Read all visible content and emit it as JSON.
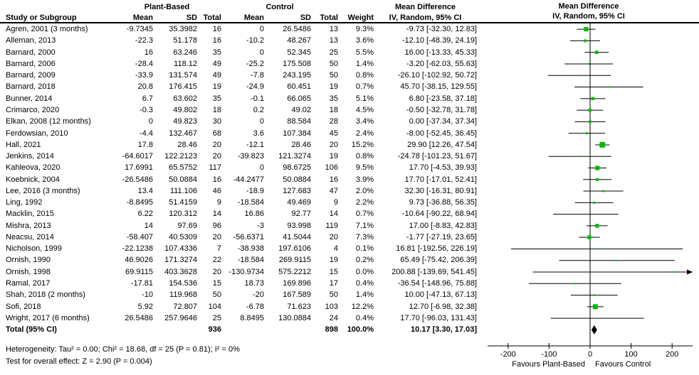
{
  "header": {
    "study_col": "Study or Subgroup",
    "group1": "Plant-Based",
    "group2": "Control",
    "mean": "Mean",
    "sd": "SD",
    "total": "Total",
    "weight": "Weight",
    "md_line1": "Mean Difference",
    "md_line2": "IV, Random, 95% CI"
  },
  "chart_data": {
    "type": "forest",
    "effect_label": "Mean Difference",
    "model_label": "IV, Random, 95% CI",
    "marker_color": "#00bb00",
    "axis": {
      "min": -250,
      "max": 250,
      "ticks": [
        -200,
        -100,
        0,
        100,
        200
      ],
      "favours_left": "Favours Plant-Based",
      "favours_right": "Favours Control"
    },
    "studies": [
      {
        "name": "Agren, 2001 (3 months)",
        "m1": "-9.7345",
        "sd1": "35.3982",
        "n1": "16",
        "m2": "0",
        "sd2": "26.5486",
        "n2": "13",
        "w": "9.3%",
        "ci": "-9.73 [-32.30, 12.83]",
        "md": -9.73,
        "lo": -32.3,
        "hi": 12.83,
        "wv": 9.3
      },
      {
        "name": "Alleman, 2013",
        "m1": "-22.3",
        "sd1": "51.178",
        "n1": "16",
        "m2": "-10.2",
        "sd2": "48.267",
        "n2": "13",
        "w": "3.6%",
        "ci": "-12.10 [-48.39, 24.19]",
        "md": -12.1,
        "lo": -48.39,
        "hi": 24.19,
        "wv": 3.6
      },
      {
        "name": "Barnard, 2000",
        "m1": "16",
        "sd1": "63.246",
        "n1": "35",
        "m2": "0",
        "sd2": "52.345",
        "n2": "25",
        "w": "5.5%",
        "ci": "16.00 [-13.33, 45.33]",
        "md": 16.0,
        "lo": -13.33,
        "hi": 45.33,
        "wv": 5.5
      },
      {
        "name": "Barnard, 2006",
        "m1": "-28.4",
        "sd1": "118.12",
        "n1": "49",
        "m2": "-25.2",
        "sd2": "175.508",
        "n2": "50",
        "w": "1.4%",
        "ci": "-3.20 [-62.03, 55.63]",
        "md": -3.2,
        "lo": -62.03,
        "hi": 55.63,
        "wv": 1.4
      },
      {
        "name": "Barnard, 2009",
        "m1": "-33.9",
        "sd1": "131.574",
        "n1": "49",
        "m2": "-7.8",
        "sd2": "243.195",
        "n2": "50",
        "w": "0.8%",
        "ci": "-26.10 [-102.92, 50.72]",
        "md": -26.1,
        "lo": -102.92,
        "hi": 50.72,
        "wv": 0.8
      },
      {
        "name": "Barnard, 2018",
        "m1": "20.8",
        "sd1": "176.415",
        "n1": "19",
        "m2": "-24.9",
        "sd2": "60.451",
        "n2": "19",
        "w": "0.7%",
        "ci": "45.70 [-38.15, 129.55]",
        "md": 45.7,
        "lo": -38.15,
        "hi": 129.55,
        "wv": 0.7
      },
      {
        "name": "Bunner, 2014",
        "m1": "6.7",
        "sd1": "63.602",
        "n1": "35",
        "m2": "-0.1",
        "sd2": "66.065",
        "n2": "35",
        "w": "5.1%",
        "ci": "6.80 [-23.58, 37.18]",
        "md": 6.8,
        "lo": -23.58,
        "hi": 37.18,
        "wv": 5.1
      },
      {
        "name": "Crimarco, 2020",
        "m1": "-0.3",
        "sd1": "49.802",
        "n1": "18",
        "m2": "0.2",
        "sd2": "49.02",
        "n2": "18",
        "w": "4.5%",
        "ci": "-0.50 [-32.78, 31.78]",
        "md": -0.5,
        "lo": -32.78,
        "hi": 31.78,
        "wv": 4.5
      },
      {
        "name": "Elkan, 2008 (12 months)",
        "m1": "0",
        "sd1": "49.823",
        "n1": "30",
        "m2": "0",
        "sd2": "88.584",
        "n2": "28",
        "w": "3.4%",
        "ci": "0.00 [-37.34, 37.34]",
        "md": 0.0,
        "lo": -37.34,
        "hi": 37.34,
        "wv": 3.4
      },
      {
        "name": "Ferdowsian, 2010",
        "m1": "-4.4",
        "sd1": "132.467",
        "n1": "68",
        "m2": "3.6",
        "sd2": "107.384",
        "n2": "45",
        "w": "2.4%",
        "ci": "-8.00 [-52.45, 36.45]",
        "md": -8.0,
        "lo": -52.45,
        "hi": 36.45,
        "wv": 2.4
      },
      {
        "name": "Hall, 2021",
        "m1": "17.8",
        "sd1": "28.46",
        "n1": "20",
        "m2": "-12.1",
        "sd2": "28.46",
        "n2": "20",
        "w": "15.2%",
        "ci": "29.90 [12.26, 47.54]",
        "md": 29.9,
        "lo": 12.26,
        "hi": 47.54,
        "wv": 15.2
      },
      {
        "name": "Jenkins, 2014",
        "m1": "-64.6017",
        "sd1": "122.2123",
        "n1": "20",
        "m2": "-39.823",
        "sd2": "121.3274",
        "n2": "19",
        "w": "0.8%",
        "ci": "-24.78 [-101.23, 51.67]",
        "md": -24.78,
        "lo": -101.23,
        "hi": 51.67,
        "wv": 0.8
      },
      {
        "name": "Kahleova, 2020",
        "m1": "17.6991",
        "sd1": "65.5752",
        "n1": "117",
        "m2": "0",
        "sd2": "98.6725",
        "n2": "106",
        "w": "9.5%",
        "ci": "17.70 [-4.53, 39.93]",
        "md": 17.7,
        "lo": -4.53,
        "hi": 39.93,
        "wv": 9.5
      },
      {
        "name": "Koebnick, 2004",
        "m1": "-26.5486",
        "sd1": "50.0884",
        "n1": "16",
        "m2": "-44.2477",
        "sd2": "50.0884",
        "n2": "16",
        "w": "3.9%",
        "ci": "17.70 [-17.01, 52.41]",
        "md": 17.7,
        "lo": -17.01,
        "hi": 52.41,
        "wv": 3.9
      },
      {
        "name": "Lee, 2016 (3 months)",
        "m1": "13.4",
        "sd1": "111.106",
        "n1": "46",
        "m2": "-18.9",
        "sd2": "127.683",
        "n2": "47",
        "w": "2.0%",
        "ci": "32.30 [-16.31, 80.91]",
        "md": 32.3,
        "lo": -16.31,
        "hi": 80.91,
        "wv": 2.0
      },
      {
        "name": "Ling, 1992",
        "m1": "-8.8495",
        "sd1": "51.4159",
        "n1": "9",
        "m2": "-18.584",
        "sd2": "49.469",
        "n2": "9",
        "w": "2.2%",
        "ci": "9.73 [-36.88, 56.35]",
        "md": 9.73,
        "lo": -36.88,
        "hi": 56.35,
        "wv": 2.2
      },
      {
        "name": "Macklin, 2015",
        "m1": "6.22",
        "sd1": "120.312",
        "n1": "14",
        "m2": "16.86",
        "sd2": "92.77",
        "n2": "14",
        "w": "0.7%",
        "ci": "-10.64 [-90.22, 68.94]",
        "md": -10.64,
        "lo": -90.22,
        "hi": 68.94,
        "wv": 0.7
      },
      {
        "name": "Mishra, 2013",
        "m1": "14",
        "sd1": "97.69",
        "n1": "96",
        "m2": "-3",
        "sd2": "93.998",
        "n2": "119",
        "w": "7.1%",
        "ci": "17.00 [-8.83, 42.83]",
        "md": 17.0,
        "lo": -8.83,
        "hi": 42.83,
        "wv": 7.1
      },
      {
        "name": "Neacsu, 2014",
        "m1": "-58.407",
        "sd1": "40.5309",
        "n1": "20",
        "m2": "-56.6371",
        "sd2": "41.5044",
        "n2": "20",
        "w": "7.3%",
        "ci": "-1.77 [-27.19, 23.65]",
        "md": -1.77,
        "lo": -27.19,
        "hi": 23.65,
        "wv": 7.3
      },
      {
        "name": "Nicholson, 1999",
        "m1": "-22.1238",
        "sd1": "107.4336",
        "n1": "7",
        "m2": "-38.938",
        "sd2": "197.6106",
        "n2": "4",
        "w": "0.1%",
        "ci": "16.81 [-192.56, 226.19]",
        "md": 16.81,
        "lo": -192.56,
        "hi": 226.19,
        "wv": 0.1
      },
      {
        "name": "Ornish, 1990",
        "m1": "46.9026",
        "sd1": "171.3274",
        "n1": "22",
        "m2": "-18.584",
        "sd2": "269.9115",
        "n2": "19",
        "w": "0.2%",
        "ci": "65.49 [-75.42, 206.39]",
        "md": 65.49,
        "lo": -75.42,
        "hi": 206.39,
        "wv": 0.2
      },
      {
        "name": "Ornish, 1998",
        "m1": "69.9115",
        "sd1": "403.3628",
        "n1": "20",
        "m2": "-130.9734",
        "sd2": "575.2212",
        "n2": "15",
        "w": "0.0%",
        "ci": "200.88 [-139.69, 541.45]",
        "md": 200.88,
        "lo": -139.69,
        "hi": 541.45,
        "wv": 0.0
      },
      {
        "name": "Ramal, 2017",
        "m1": "-17.81",
        "sd1": "154.536",
        "n1": "15",
        "m2": "18.73",
        "sd2": "169.896",
        "n2": "17",
        "w": "0.4%",
        "ci": "-36.54 [-148.96, 75.88]",
        "md": -36.54,
        "lo": -148.96,
        "hi": 75.88,
        "wv": 0.4
      },
      {
        "name": "Shah, 2018 (2 months)",
        "m1": "-10",
        "sd1": "119.968",
        "n1": "50",
        "m2": "-20",
        "sd2": "167.589",
        "n2": "50",
        "w": "1.4%",
        "ci": "10.00 [-47.13, 67.13]",
        "md": 10.0,
        "lo": -47.13,
        "hi": 67.13,
        "wv": 1.4
      },
      {
        "name": "Sofi, 2018",
        "m1": "5.92",
        "sd1": "72.807",
        "n1": "104",
        "m2": "-6.78",
        "sd2": "71.623",
        "n2": "103",
        "w": "12.2%",
        "ci": "12.70 [-6.98, 32.38]",
        "md": 12.7,
        "lo": -6.98,
        "hi": 32.38,
        "wv": 12.2
      },
      {
        "name": "Wright, 2017 (6 months)",
        "m1": "26.5486",
        "sd1": "257.9646",
        "n1": "25",
        "m2": "8.8495",
        "sd2": "130.0884",
        "n2": "24",
        "w": "0.4%",
        "ci": "17.70 [-96.03, 131.43]",
        "md": 17.7,
        "lo": -96.03,
        "hi": 131.43,
        "wv": 0.4
      }
    ],
    "total": {
      "label": "Total (95% CI)",
      "n1": "936",
      "n2": "898",
      "weight": "100.0%",
      "ci_text": "10.17 [3.30, 17.03]",
      "md": 10.17,
      "lo": 3.3,
      "hi": 17.03
    },
    "footer": {
      "heterogeneity": "Heterogeneity: Tau² = 0.00; Chi² = 18.68, df = 25 (P = 0.81); I² = 0%",
      "overall_effect": "Test for overall effect: Z = 2.90 (P = 0.004)"
    }
  }
}
